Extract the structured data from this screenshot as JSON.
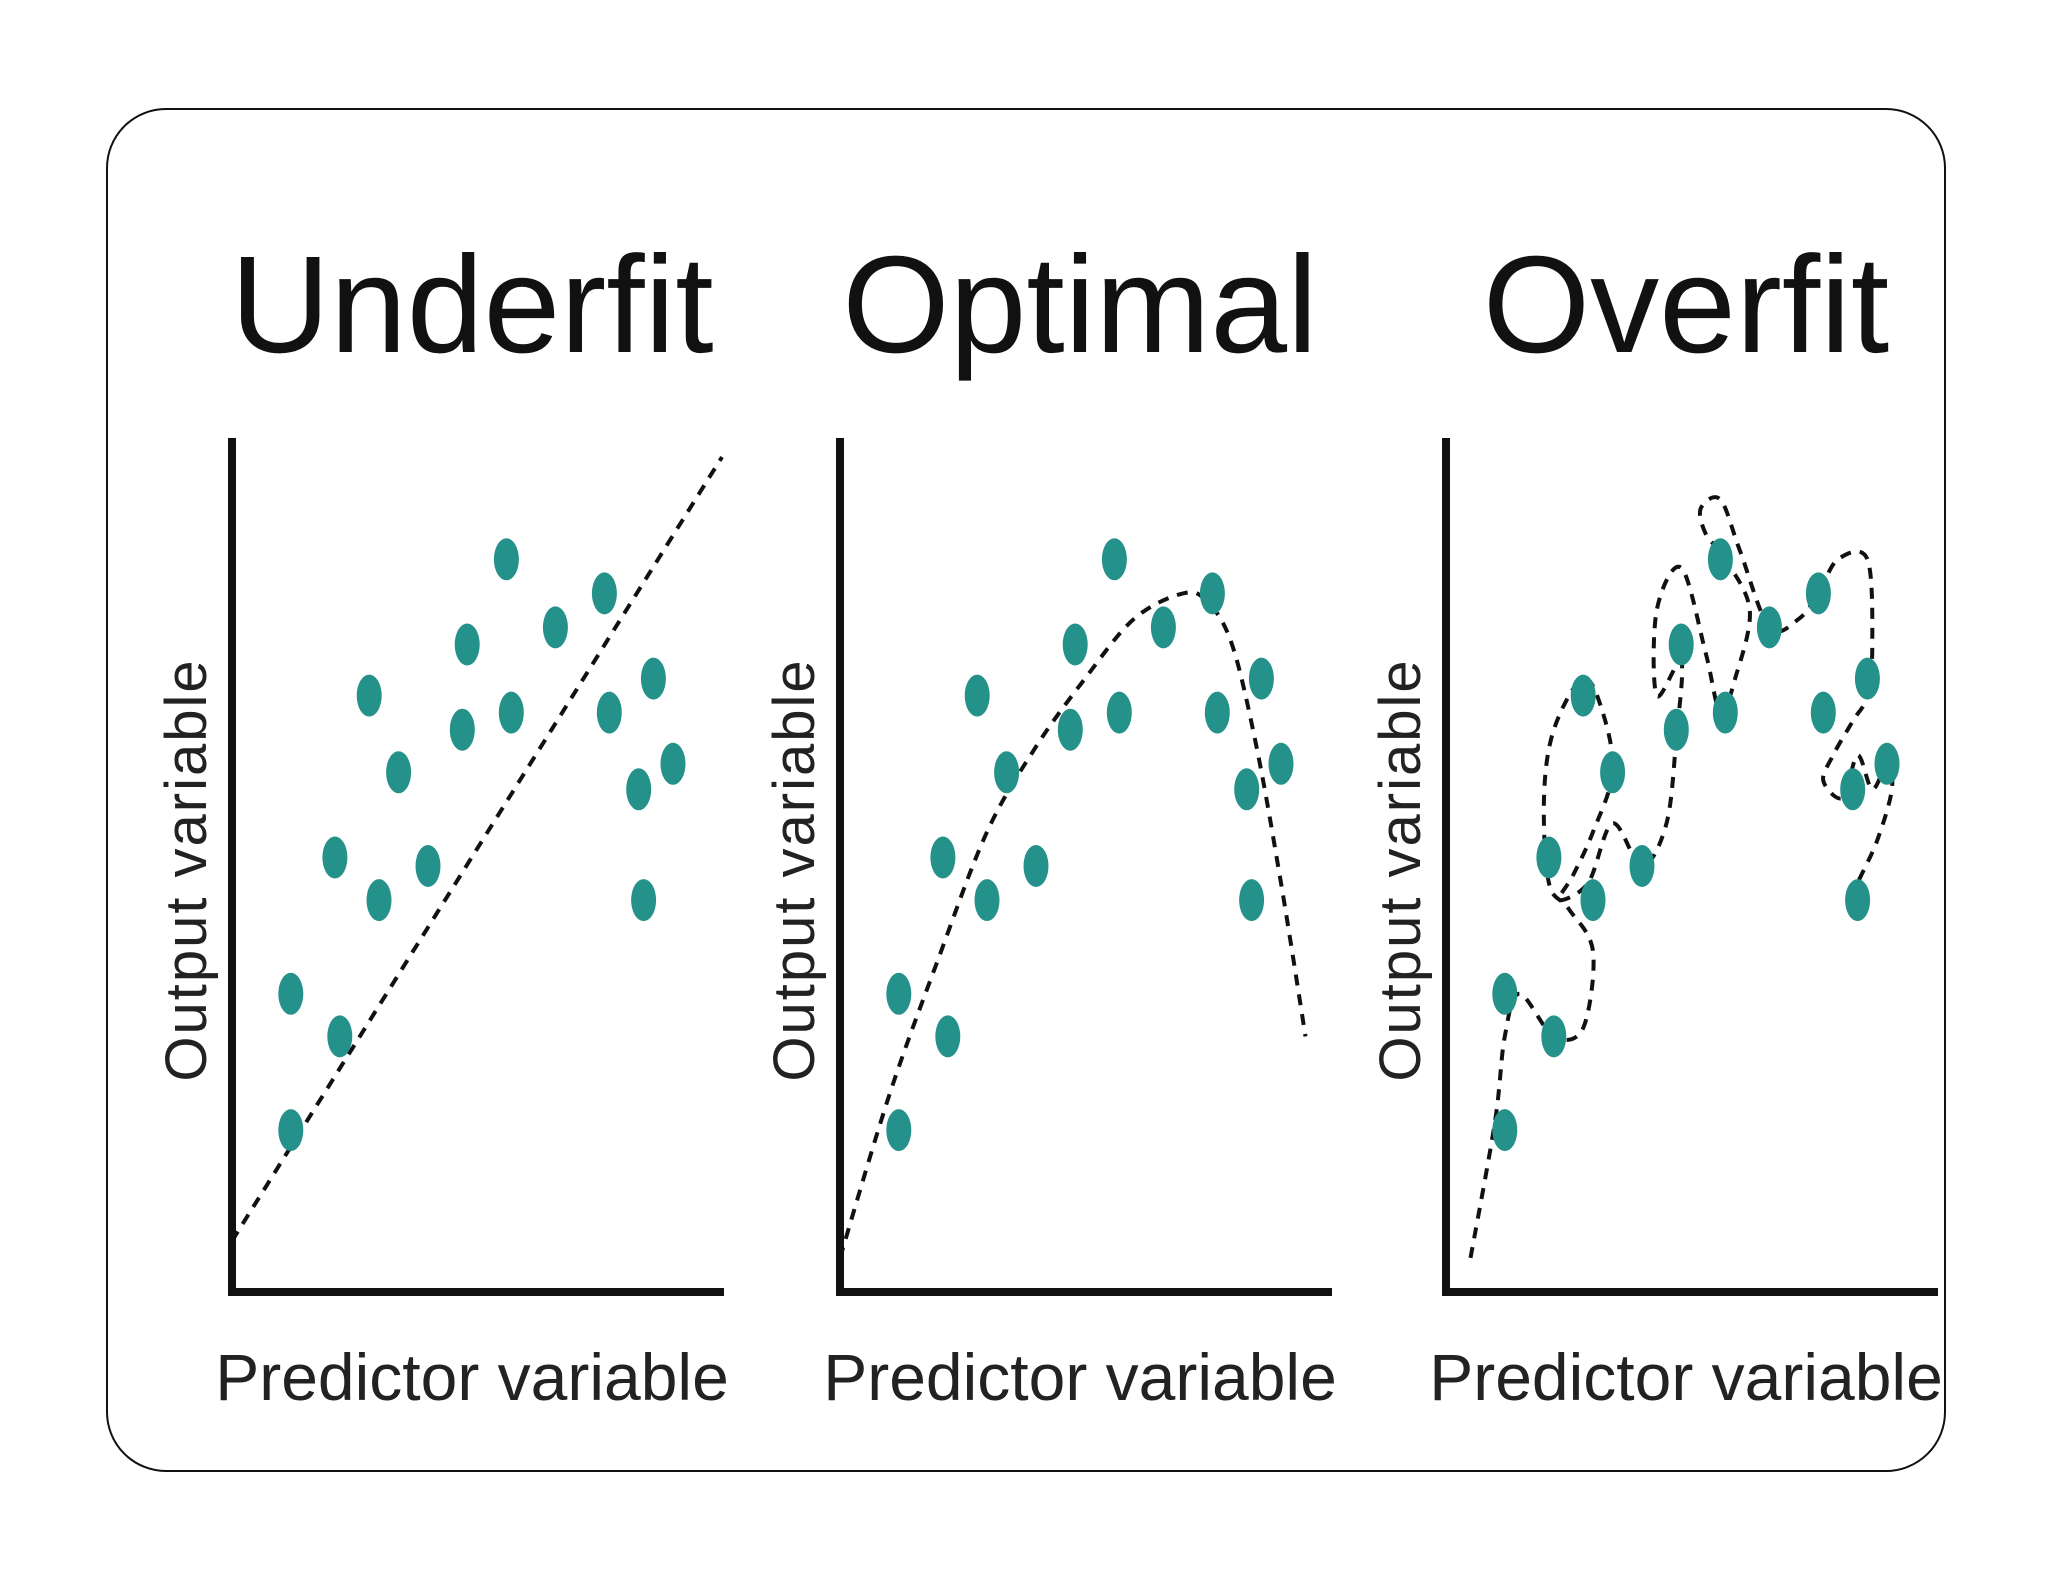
{
  "colors": {
    "point": "#24918a",
    "line": "#111111",
    "frame": "#111111",
    "background": "#ffffff"
  },
  "chart_data": [
    {
      "type": "scatter",
      "title": "Underfit",
      "xlabel": "Predictor variable",
      "ylabel": "Output variable",
      "xlim": [
        0,
        10
      ],
      "ylim": [
        0,
        10
      ],
      "grid": false,
      "points": [
        {
          "x": 1.2,
          "y": 1.9
        },
        {
          "x": 1.2,
          "y": 3.5
        },
        {
          "x": 2.2,
          "y": 3.0
        },
        {
          "x": 2.1,
          "y": 5.1
        },
        {
          "x": 3.0,
          "y": 4.6
        },
        {
          "x": 2.8,
          "y": 7.0
        },
        {
          "x": 3.4,
          "y": 6.1
        },
        {
          "x": 4.0,
          "y": 5.0
        },
        {
          "x": 4.7,
          "y": 6.6
        },
        {
          "x": 4.8,
          "y": 7.6
        },
        {
          "x": 5.6,
          "y": 8.6
        },
        {
          "x": 5.7,
          "y": 6.8
        },
        {
          "x": 6.6,
          "y": 7.8
        },
        {
          "x": 7.6,
          "y": 8.2
        },
        {
          "x": 7.7,
          "y": 6.8
        },
        {
          "x": 8.6,
          "y": 7.2
        },
        {
          "x": 8.3,
          "y": 5.9
        },
        {
          "x": 9.0,
          "y": 6.2
        },
        {
          "x": 8.4,
          "y": 4.6
        }
      ],
      "fit": {
        "style": "dashed",
        "x": [
          0.0,
          10.0
        ],
        "y": [
          0.6,
          9.8
        ]
      }
    },
    {
      "type": "scatter",
      "title": "Optimal",
      "xlabel": "Predictor variable",
      "ylabel": "Output variable",
      "xlim": [
        0,
        10
      ],
      "ylim": [
        0,
        10
      ],
      "grid": false,
      "points": [
        {
          "x": 1.2,
          "y": 1.9
        },
        {
          "x": 1.2,
          "y": 3.5
        },
        {
          "x": 2.2,
          "y": 3.0
        },
        {
          "x": 2.1,
          "y": 5.1
        },
        {
          "x": 3.0,
          "y": 4.6
        },
        {
          "x": 2.8,
          "y": 7.0
        },
        {
          "x": 3.4,
          "y": 6.1
        },
        {
          "x": 4.0,
          "y": 5.0
        },
        {
          "x": 4.7,
          "y": 6.6
        },
        {
          "x": 4.8,
          "y": 7.6
        },
        {
          "x": 5.6,
          "y": 8.6
        },
        {
          "x": 5.7,
          "y": 6.8
        },
        {
          "x": 6.6,
          "y": 7.8
        },
        {
          "x": 7.6,
          "y": 8.2
        },
        {
          "x": 7.7,
          "y": 6.8
        },
        {
          "x": 8.6,
          "y": 7.2
        },
        {
          "x": 8.3,
          "y": 5.9
        },
        {
          "x": 9.0,
          "y": 6.2
        },
        {
          "x": 8.4,
          "y": 4.6
        }
      ],
      "fit": {
        "style": "dashed",
        "x": [
          0.0,
          1.0,
          2.0,
          3.0,
          4.0,
          5.0,
          6.0,
          7.0,
          7.5,
          8.0,
          8.5,
          9.0,
          9.5
        ],
        "y": [
          0.4,
          2.3,
          3.9,
          5.4,
          6.4,
          7.2,
          7.9,
          8.2,
          8.1,
          7.6,
          6.4,
          4.8,
          3.0
        ]
      }
    },
    {
      "type": "scatter",
      "title": "Overfit",
      "xlabel": "Predictor variable",
      "ylabel": "Output variable",
      "xlim": [
        0,
        10
      ],
      "ylim": [
        0,
        10
      ],
      "grid": false,
      "points": [
        {
          "x": 1.2,
          "y": 1.9
        },
        {
          "x": 1.2,
          "y": 3.5
        },
        {
          "x": 2.2,
          "y": 3.0
        },
        {
          "x": 2.1,
          "y": 5.1
        },
        {
          "x": 3.0,
          "y": 4.6
        },
        {
          "x": 2.8,
          "y": 7.0
        },
        {
          "x": 3.4,
          "y": 6.1
        },
        {
          "x": 4.0,
          "y": 5.0
        },
        {
          "x": 4.7,
          "y": 6.6
        },
        {
          "x": 4.8,
          "y": 7.6
        },
        {
          "x": 5.6,
          "y": 8.6
        },
        {
          "x": 5.7,
          "y": 6.8
        },
        {
          "x": 6.6,
          "y": 7.8
        },
        {
          "x": 7.6,
          "y": 8.2
        },
        {
          "x": 7.7,
          "y": 6.8
        },
        {
          "x": 8.6,
          "y": 7.2
        },
        {
          "x": 8.3,
          "y": 5.9
        },
        {
          "x": 9.0,
          "y": 6.2
        },
        {
          "x": 8.4,
          "y": 4.6
        }
      ],
      "fit": {
        "style": "dashed",
        "x": [
          0.5,
          1.0,
          1.2,
          1.5,
          2.2,
          2.8,
          3.0,
          2.5,
          2.1,
          2.0,
          2.2,
          2.8,
          3.2,
          3.4,
          3.0,
          2.6,
          2.3,
          2.9,
          3.4,
          4.0,
          4.5,
          4.7,
          4.8,
          4.3,
          4.3,
          4.8,
          5.3,
          5.6,
          5.9,
          6.2,
          5.7,
          5.3,
          5.2,
          5.6,
          6.0,
          6.6,
          7.2,
          7.6,
          8.0,
          8.6,
          8.7,
          8.6,
          8.3,
          7.9,
          7.7,
          8.1,
          8.4,
          8.7,
          9.0,
          9.1,
          8.8,
          8.4,
          8.2
        ],
        "y": [
          0.4,
          2.0,
          3.0,
          3.5,
          3.0,
          3.1,
          4.0,
          4.5,
          4.8,
          5.8,
          6.6,
          7.2,
          6.8,
          6.1,
          5.4,
          4.9,
          4.6,
          4.8,
          5.5,
          5.0,
          5.5,
          6.5,
          7.4,
          7.0,
          8.0,
          8.5,
          7.5,
          6.8,
          7.2,
          8.0,
          8.6,
          8.9,
          9.2,
          9.3,
          8.7,
          7.8,
          7.9,
          8.2,
          8.6,
          8.6,
          7.6,
          7.0,
          6.7,
          6.3,
          6.0,
          5.8,
          6.3,
          5.9,
          6.2,
          5.9,
          5.3,
          4.8,
          4.5
        ]
      }
    }
  ]
}
